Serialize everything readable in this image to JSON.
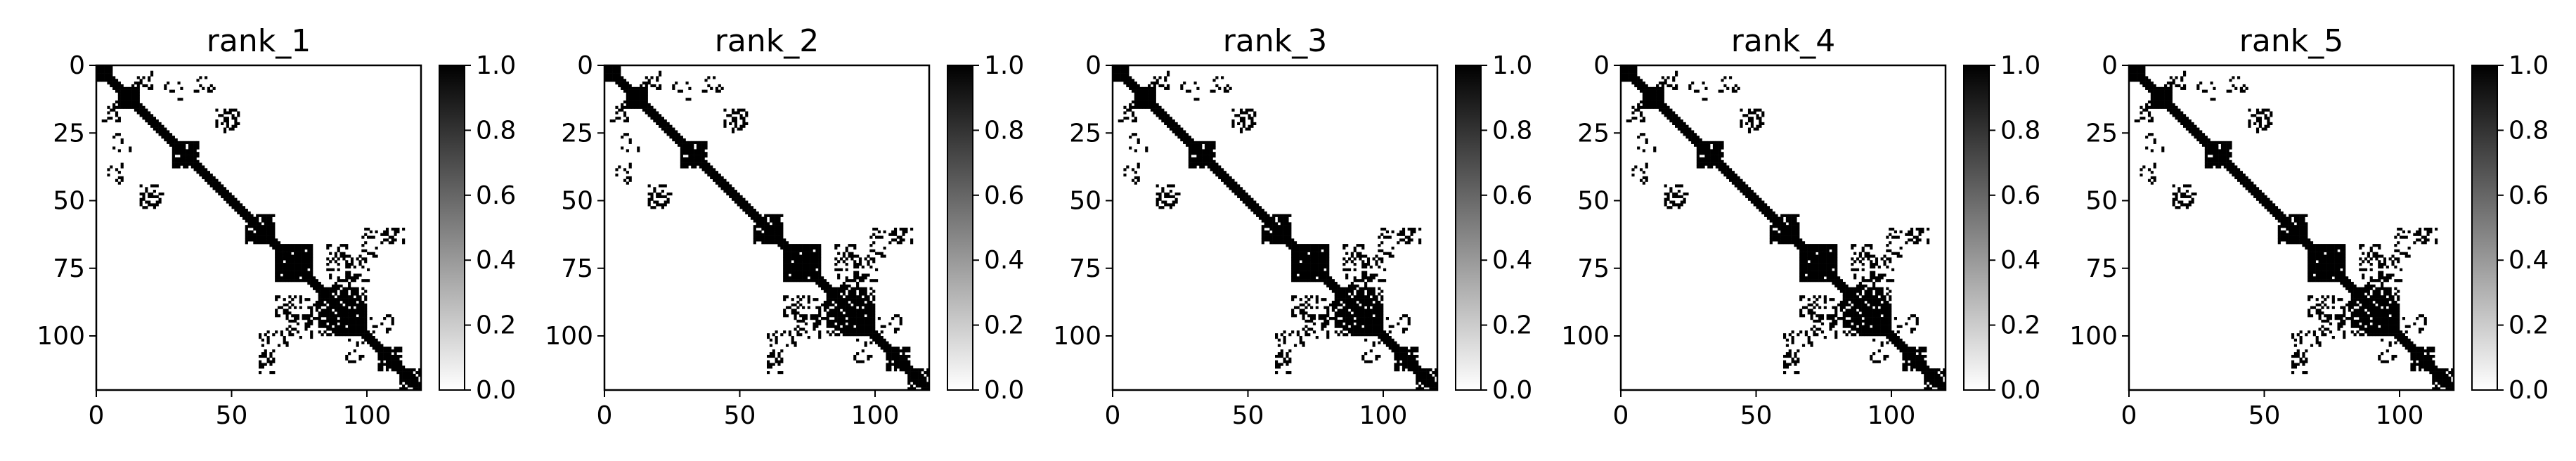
{
  "chart_data": [
    {
      "type": "heatmap",
      "title": "rank_1",
      "matrix_size": 120,
      "x_ticks": [
        0,
        50,
        100
      ],
      "y_ticks": [
        0,
        25,
        50,
        75,
        100
      ],
      "xlim": [
        0,
        120
      ],
      "ylim": [
        120,
        0
      ],
      "colormap": "Greys",
      "colorbar": {
        "ticks": [
          "0.0",
          "0.2",
          "0.4",
          "0.6",
          "0.8",
          "1.0"
        ],
        "range": [
          0,
          1
        ]
      }
    },
    {
      "type": "heatmap",
      "title": "rank_2",
      "matrix_size": 120,
      "x_ticks": [
        0,
        50,
        100
      ],
      "y_ticks": [
        0,
        25,
        50,
        75,
        100
      ],
      "xlim": [
        0,
        120
      ],
      "ylim": [
        120,
        0
      ],
      "colormap": "Greys",
      "colorbar": {
        "ticks": [
          "0.0",
          "0.2",
          "0.4",
          "0.6",
          "0.8",
          "1.0"
        ],
        "range": [
          0,
          1
        ]
      }
    },
    {
      "type": "heatmap",
      "title": "rank_3",
      "matrix_size": 120,
      "x_ticks": [
        0,
        50,
        100
      ],
      "y_ticks": [
        0,
        25,
        50,
        75,
        100
      ],
      "xlim": [
        0,
        120
      ],
      "ylim": [
        120,
        0
      ],
      "colormap": "Greys",
      "colorbar": {
        "ticks": [
          "0.0",
          "0.2",
          "0.4",
          "0.6",
          "0.8",
          "1.0"
        ],
        "range": [
          0,
          1
        ]
      }
    },
    {
      "type": "heatmap",
      "title": "rank_4",
      "matrix_size": 120,
      "x_ticks": [
        0,
        50,
        100
      ],
      "y_ticks": [
        0,
        25,
        50,
        75,
        100
      ],
      "xlim": [
        0,
        120
      ],
      "ylim": [
        120,
        0
      ],
      "colormap": "Greys",
      "colorbar": {
        "ticks": [
          "0.0",
          "0.2",
          "0.4",
          "0.6",
          "0.8",
          "1.0"
        ],
        "range": [
          0,
          1
        ]
      }
    },
    {
      "type": "heatmap",
      "title": "rank_5",
      "matrix_size": 120,
      "x_ticks": [
        0,
        50,
        100
      ],
      "y_ticks": [
        0,
        25,
        50,
        75,
        100
      ],
      "xlim": [
        0,
        120
      ],
      "ylim": [
        120,
        0
      ],
      "colormap": "Greys",
      "colorbar": {
        "ticks": [
          "0.0",
          "0.2",
          "0.4",
          "0.6",
          "0.8",
          "1.0"
        ],
        "range": [
          0,
          1
        ]
      }
    }
  ],
  "contact_map": {
    "diagonal_band": [
      {
        "from": 0,
        "to": 120,
        "width": 2,
        "value": 1.0
      }
    ],
    "blocks": [
      {
        "r": [
          0,
          6
        ],
        "c": [
          0,
          6
        ],
        "density": 0.85
      },
      {
        "r": [
          8,
          16
        ],
        "c": [
          8,
          16
        ],
        "density": 0.7
      },
      {
        "r": [
          28,
          38
        ],
        "c": [
          28,
          38
        ],
        "density": 0.65
      },
      {
        "r": [
          55,
          66
        ],
        "c": [
          55,
          66
        ],
        "density": 0.6
      },
      {
        "r": [
          66,
          80
        ],
        "c": [
          66,
          80
        ],
        "density": 0.75
      },
      {
        "r": [
          82,
          100
        ],
        "c": [
          82,
          100
        ],
        "density": 0.55
      },
      {
        "r": [
          104,
          113
        ],
        "c": [
          104,
          113
        ],
        "density": 0.7
      },
      {
        "r": [
          112,
          120
        ],
        "c": [
          112,
          120
        ],
        "density": 0.6
      },
      {
        "r": [
          2,
          9
        ],
        "c": [
          13,
          21
        ],
        "density": 0.35
      },
      {
        "r": [
          3,
          10
        ],
        "c": [
          36,
          44
        ],
        "density": 0.25
      },
      {
        "r": [
          16,
          25
        ],
        "c": [
          44,
          52
        ],
        "density": 0.35
      },
      {
        "r": [
          25,
          32
        ],
        "c": [
          6,
          13
        ],
        "density": 0.25
      },
      {
        "r": [
          47,
          53
        ],
        "c": [
          16,
          25
        ],
        "density": 0.4
      },
      {
        "r": [
          60,
          66
        ],
        "c": [
          106,
          114
        ],
        "density": 0.25
      },
      {
        "r": [
          70,
          80
        ],
        "c": [
          91,
          101
        ],
        "density": 0.3
      },
      {
        "r": [
          77,
          85
        ],
        "c": [
          86,
          97
        ],
        "density": 0.25
      },
      {
        "r": [
          85,
          95
        ],
        "c": [
          66,
          76
        ],
        "density": 0.35
      },
      {
        "r": [
          92,
          100
        ],
        "c": [
          101,
          110
        ],
        "density": 0.25
      },
      {
        "r": [
          98,
          104
        ],
        "c": [
          60,
          72
        ],
        "density": 0.3
      },
      {
        "r": [
          105,
          112
        ],
        "c": [
          60,
          66
        ],
        "density": 0.25
      }
    ],
    "seed": 7
  }
}
